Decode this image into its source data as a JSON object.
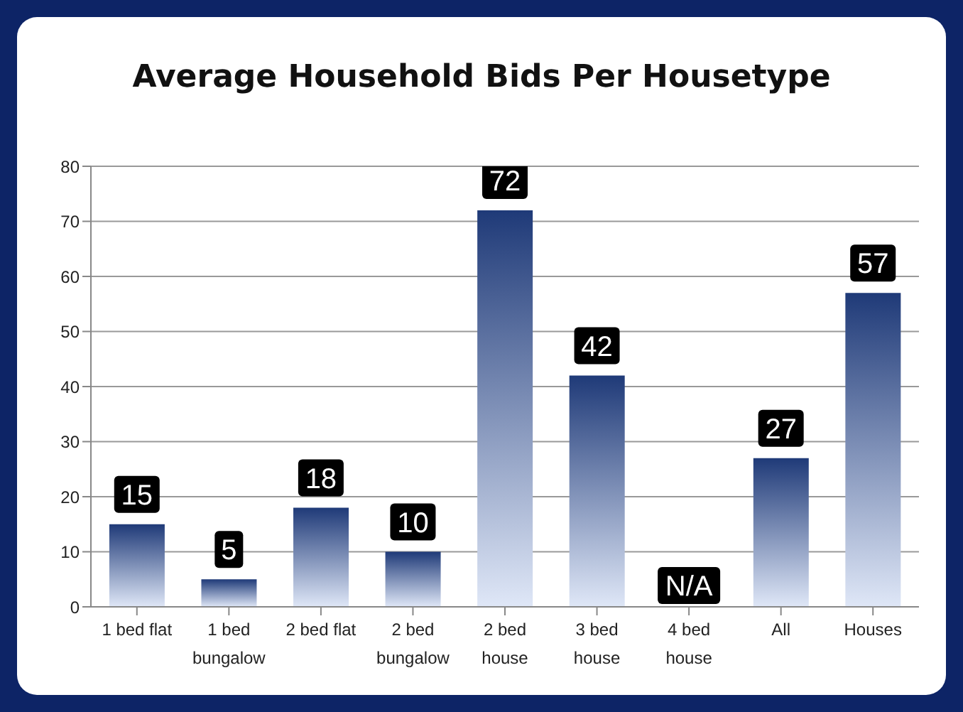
{
  "chart_data": {
    "type": "bar",
    "title": "Average Household Bids Per Housetype",
    "categories": [
      "1 bed flat",
      "1 bed bungalow",
      "2 bed flat",
      "2 bed bungalow",
      "2 bed house",
      "3 bed house",
      "4 bed house",
      "All",
      "Houses"
    ],
    "values": [
      15,
      5,
      18,
      10,
      72,
      42,
      null,
      27,
      57
    ],
    "value_labels": [
      "15",
      "5",
      "18",
      "10",
      "72",
      "42",
      "N/A",
      "27",
      "57"
    ],
    "color": "#1f3a78",
    "ylim": [
      0,
      80
    ],
    "yticks": [
      0,
      10,
      20,
      30,
      40,
      50,
      60,
      70,
      80
    ],
    "grid": "y"
  }
}
